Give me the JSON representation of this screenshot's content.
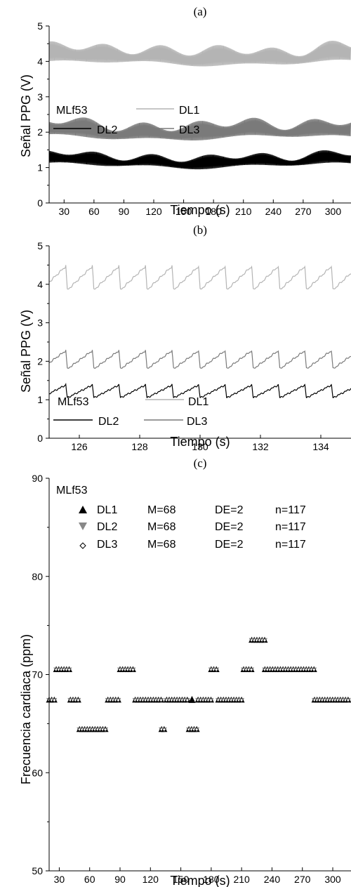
{
  "chart_data": [
    {
      "panel_label": "(a)",
      "type": "line",
      "title": "",
      "xlabel": "Tiempo (s)",
      "ylabel": "Señal PPG (V)",
      "xlim": [
        15,
        318
      ],
      "ylim": [
        0,
        5
      ],
      "xticks": [
        30,
        60,
        90,
        120,
        150,
        180,
        210,
        240,
        270,
        300
      ],
      "yticks": [
        0,
        1,
        2,
        3,
        4,
        5
      ],
      "subject_label": "MLf53",
      "legend": [
        "DL1",
        "DL2",
        "DL3"
      ],
      "series": [
        {
          "name": "DL1",
          "color": "#b4b4b4",
          "baseline": 3.95,
          "amplitude": 0.26,
          "mean_level": 4.1
        },
        {
          "name": "DL2",
          "color": "#000000",
          "baseline": 1.05,
          "amplitude": 0.18,
          "mean_level": 1.15
        },
        {
          "name": "DL3",
          "color": "#7a7a7a",
          "baseline": 1.85,
          "amplitude": 0.25,
          "mean_level": 2.0
        }
      ]
    },
    {
      "panel_label": "(b)",
      "type": "line",
      "title": "",
      "xlabel": "Tiempo (s)",
      "ylabel": "Señal PPG (V)",
      "xlim": [
        125,
        135
      ],
      "ylim": [
        0,
        5
      ],
      "xticks": [
        126,
        128,
        130,
        132,
        134
      ],
      "yticks": [
        0,
        1,
        2,
        3,
        4,
        5
      ],
      "subject_label": "MLf53",
      "legend": [
        "DL1",
        "DL2",
        "DL3"
      ],
      "beat_period_s": 0.88,
      "series": [
        {
          "name": "DL1",
          "color": "#b4b4b4",
          "trough": 3.85,
          "peak": 4.5
        },
        {
          "name": "DL2",
          "color": "#000000",
          "trough": 1.05,
          "peak": 1.4
        },
        {
          "name": "DL3",
          "color": "#7a7a7a",
          "trough": 1.8,
          "peak": 2.3
        }
      ]
    },
    {
      "panel_label": "(c)",
      "type": "scatter",
      "title": "",
      "xlabel": "Tiempo (s)",
      "ylabel": "Frecuencia cardiaca (ppm)",
      "xlim": [
        20,
        318
      ],
      "ylim": [
        50,
        90
      ],
      "xticks": [
        30,
        60,
        90,
        120,
        150,
        180,
        210,
        240,
        270,
        300
      ],
      "yticks": [
        50,
        60,
        70,
        80,
        90
      ],
      "subject_label": "MLf53",
      "legend_rows": [
        {
          "name": "DL1",
          "mean": "M=68",
          "sd": "DE=2",
          "n": "n=117"
        },
        {
          "name": "DL2",
          "mean": "M=68",
          "sd": "DE=2",
          "n": "n=117"
        },
        {
          "name": "DL3",
          "mean": "M=68",
          "sd": "DE=2",
          "n": "n=117"
        }
      ],
      "segments": [
        {
          "x_start": 20,
          "x_end": 27,
          "y": 67.4
        },
        {
          "x_start": 27,
          "x_end": 41,
          "y": 70.5
        },
        {
          "x_start": 41,
          "x_end": 50,
          "y": 67.4
        },
        {
          "x_start": 50,
          "x_end": 78,
          "y": 64.4
        },
        {
          "x_start": 78,
          "x_end": 90,
          "y": 67.4
        },
        {
          "x_start": 90,
          "x_end": 105,
          "y": 70.5
        },
        {
          "x_start": 105,
          "x_end": 131,
          "y": 67.4
        },
        {
          "x_start": 131,
          "x_end": 136,
          "y": 64.4
        },
        {
          "x_start": 136,
          "x_end": 158,
          "y": 67.4
        },
        {
          "x_start": 158,
          "x_end": 167,
          "y": 64.4
        },
        {
          "x_start": 167,
          "x_end": 180,
          "y": 67.4
        },
        {
          "x_start": 180,
          "x_end": 187,
          "y": 70.5
        },
        {
          "x_start": 187,
          "x_end": 212,
          "y": 67.4
        },
        {
          "x_start": 212,
          "x_end": 220,
          "y": 70.5
        },
        {
          "x_start": 220,
          "x_end": 233,
          "y": 73.5
        },
        {
          "x_start": 233,
          "x_end": 282,
          "y": 70.5
        },
        {
          "x_start": 282,
          "x_end": 318,
          "y": 67.4
        }
      ],
      "outliers": [
        {
          "series": "DL1",
          "x": 161,
          "y": 67.4
        }
      ]
    }
  ]
}
